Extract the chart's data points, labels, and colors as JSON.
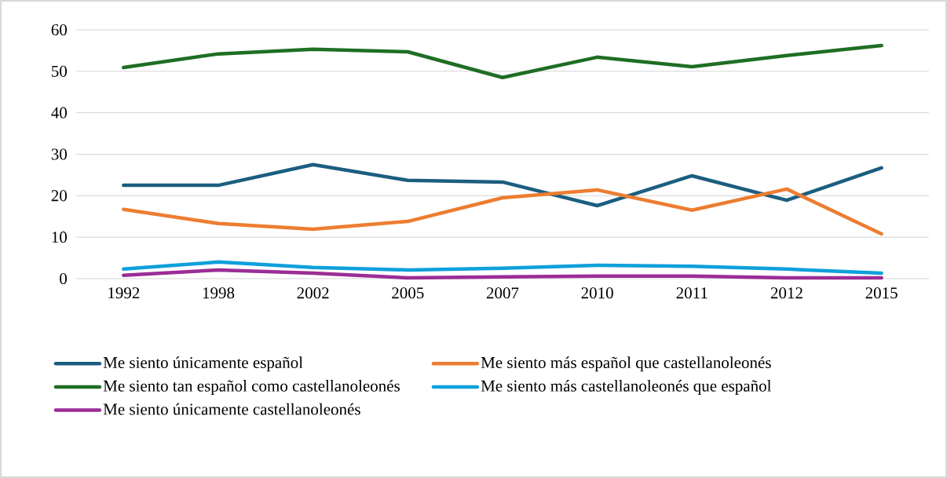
{
  "chart_data": {
    "type": "line",
    "categories": [
      "1992",
      "1998",
      "2002",
      "2005",
      "2007",
      "2010",
      "2011",
      "2012",
      "2015"
    ],
    "series": [
      {
        "name": "Me siento únicamente español",
        "color": "#1b5e80",
        "values": [
          22.5,
          22.5,
          27.5,
          23.7,
          23.3,
          17.6,
          24.8,
          18.9,
          26.7
        ]
      },
      {
        "name": "Me siento más español que castellanoleonés",
        "color": "#ed7d31",
        "values": [
          16.7,
          13.3,
          11.9,
          13.8,
          19.5,
          21.4,
          16.5,
          21.6,
          10.8
        ]
      },
      {
        "name": "Me siento tan español como castellanoleonés",
        "color": "#1e6e23",
        "values": [
          50.9,
          54.2,
          55.3,
          54.7,
          48.5,
          53.4,
          51.1,
          53.8,
          56.2
        ]
      },
      {
        "name": "Me siento más castellanoleonés que español",
        "color": "#0ea0db",
        "values": [
          2.3,
          4.0,
          2.7,
          2.1,
          2.5,
          3.2,
          3.0,
          2.3,
          1.3
        ]
      },
      {
        "name": "Me siento únicamente castellanoleonés",
        "color": "#9b2d96",
        "values": [
          0.8,
          2.1,
          1.3,
          0.2,
          0.4,
          0.6,
          0.6,
          0.2,
          0.2
        ]
      }
    ],
    "ylim": [
      0,
      60
    ],
    "yticks": [
      0,
      10,
      20,
      30,
      40,
      50,
      60
    ],
    "grid": "y",
    "legend": "bottom"
  }
}
